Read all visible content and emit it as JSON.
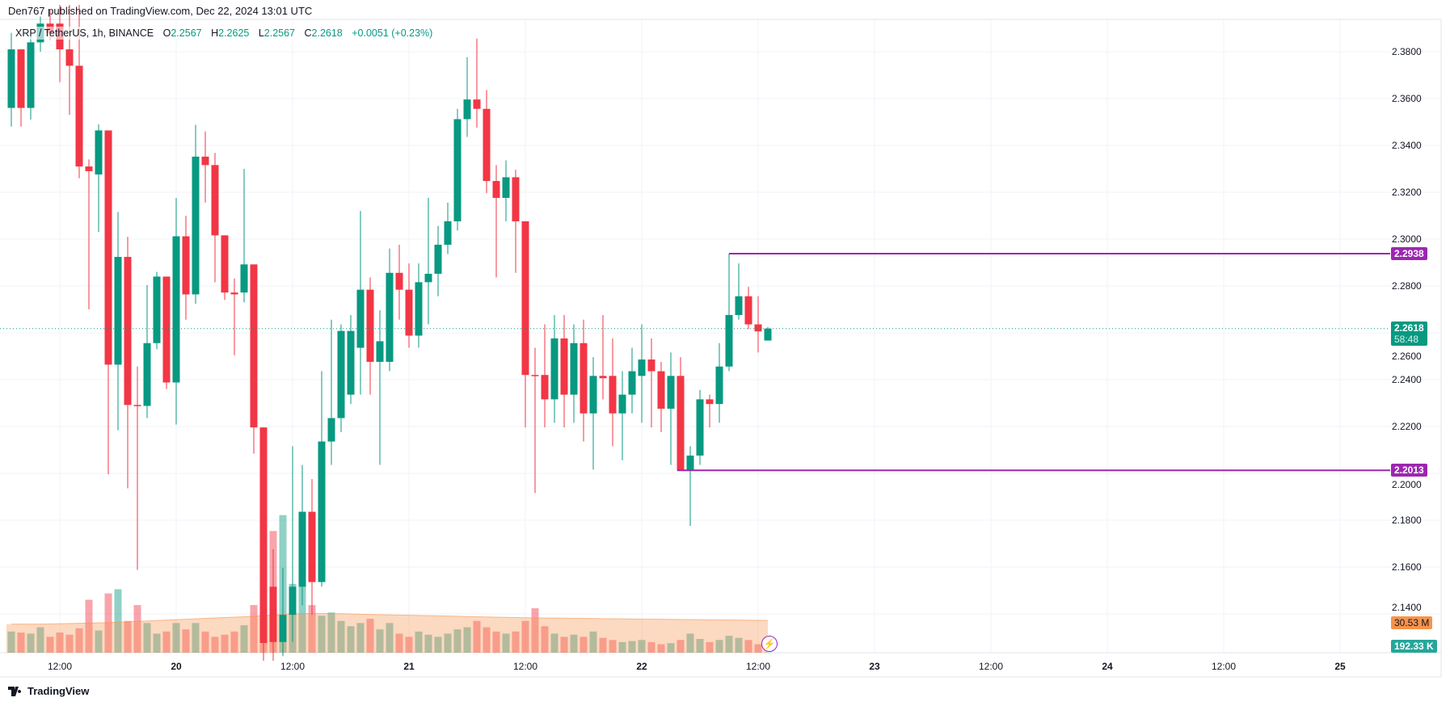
{
  "publisher_line": "Den767 published on TradingView.com, Dec 22, 2024 13:01 UTC",
  "legend": {
    "symbol": "XRP / TetherUS, 1h, BINANCE",
    "open_label": "O",
    "open": "2.2567",
    "high_label": "H",
    "high": "2.2625",
    "low_label": "L",
    "low": "2.2567",
    "close_label": "C",
    "close": "2.2618",
    "change": "+0.0051 (+0.23%)"
  },
  "price_axis": [
    "2.3800",
    "2.3600",
    "2.3400",
    "2.3200",
    "2.3000",
    "2.2800",
    "2.2600",
    "2.2400",
    "2.2200",
    "2.2000",
    "2.1800",
    "2.1600",
    "2.1400"
  ],
  "price_tags": {
    "resistance": "2.2938",
    "support": "2.2013",
    "last_price": "2.2618",
    "countdown": "58:48",
    "volume_ma": "30.53 M",
    "volume": "192.33 K"
  },
  "time_axis": [
    "12:00",
    "20",
    "12:00",
    "21",
    "12:00",
    "22",
    "12:00",
    "23",
    "12:00",
    "24",
    "12:00",
    "25"
  ],
  "colors": {
    "up": "#089981",
    "down": "#f23645",
    "level": "#9c27b0",
    "volume_ma": "#f7934c"
  },
  "icons": {
    "alert": "lightning-icon",
    "logo": "tradingview-logo-icon"
  },
  "brand": "TradingView",
  "chart_data": {
    "type": "candlestick",
    "interval": "1h",
    "first_bar": "Dec 19 07:00",
    "ylim": [
      2.12,
      2.4
    ],
    "levels": [
      2.2938,
      2.2013
    ],
    "ohlc": [
      [
        2.356,
        2.388,
        2.348,
        2.381
      ],
      [
        2.381,
        2.381,
        2.348,
        2.356
      ],
      [
        2.356,
        2.388,
        2.351,
        2.384
      ],
      [
        2.384,
        2.395,
        2.38,
        2.392
      ],
      [
        2.392,
        2.398,
        2.385,
        2.388
      ],
      [
        2.392,
        2.4,
        2.367,
        2.381
      ],
      [
        2.381,
        2.4,
        2.353,
        2.374
      ],
      [
        2.374,
        2.4,
        2.326,
        2.331
      ],
      [
        2.331,
        2.334,
        2.27,
        2.329
      ],
      [
        2.3276,
        2.349,
        2.303,
        2.3464
      ],
      [
        2.3464,
        2.3464,
        2.1996,
        2.2464
      ],
      [
        2.2464,
        2.3116,
        2.2184,
        2.2924
      ],
      [
        2.2924,
        2.301,
        2.1936,
        2.2292
      ],
      [
        2.2292,
        2.2456,
        2.1588,
        2.2288
      ],
      [
        2.2288,
        2.2804,
        2.2236,
        2.2556
      ],
      [
        2.2556,
        2.286,
        2.253,
        2.284
      ],
      [
        2.284,
        2.284,
        2.236,
        2.2388
      ],
      [
        2.2388,
        2.3176,
        2.2208,
        2.3012
      ],
      [
        2.3012,
        2.31,
        2.2656,
        2.2764
      ],
      [
        2.2764,
        2.3488,
        2.2724,
        2.3352
      ],
      [
        2.3352,
        2.346,
        2.3156,
        2.3316
      ],
      [
        2.3316,
        2.3368,
        2.2816,
        2.3016
      ],
      [
        2.3016,
        2.3016,
        2.274,
        2.2772
      ],
      [
        2.2772,
        2.2832,
        2.2504,
        2.2764
      ],
      [
        2.2772,
        2.33,
        2.273,
        2.2892
      ],
      [
        2.2892,
        2.2892,
        2.2084,
        2.2196
      ],
      [
        2.2196,
        2.2196,
        2.12,
        2.1276
      ],
      [
        2.1516,
        2.1676,
        2.12,
        2.128
      ],
      [
        2.128,
        2.1596,
        2.122,
        2.1396
      ],
      [
        2.1396,
        2.2116,
        2.128,
        2.1516
      ],
      [
        2.1516,
        2.2036,
        2.1436,
        2.1836
      ],
      [
        2.1836,
        2.1976,
        2.1396,
        2.1536
      ],
      [
        2.1536,
        2.2436,
        2.1516,
        2.2136
      ],
      [
        2.2136,
        2.2656,
        2.2036,
        2.2236
      ],
      [
        2.2236,
        2.2636,
        2.2176,
        2.2608
      ],
      [
        2.2336,
        2.2676,
        2.2296,
        2.2608
      ],
      [
        2.2536,
        2.312,
        2.2336,
        2.2784
      ],
      [
        2.2784,
        2.2836,
        2.2336,
        2.2476
      ],
      [
        2.2476,
        2.2696,
        2.2036,
        2.2564
      ],
      [
        2.2476,
        2.296,
        2.2436,
        2.2856
      ],
      [
        2.2856,
        2.2976,
        2.2656,
        2.2784
      ],
      [
        2.2784,
        2.2896,
        2.2536,
        2.2588
      ],
      [
        2.2588,
        2.2896,
        2.2536,
        2.2816
      ],
      [
        2.2816,
        2.3176,
        2.2636,
        2.2852
      ],
      [
        2.2852,
        2.3056,
        2.2756,
        2.2976
      ],
      [
        2.2976,
        2.3156,
        2.2936,
        2.3076
      ],
      [
        2.3076,
        2.3556,
        2.3036,
        2.3512
      ],
      [
        2.3512,
        2.3776,
        2.3436,
        2.3596
      ],
      [
        2.3596,
        2.3856,
        2.3476,
        2.3556
      ],
      [
        2.3556,
        2.3636,
        2.3196,
        2.3248
      ],
      [
        2.3248,
        2.3316,
        2.2836,
        2.3176
      ],
      [
        2.3176,
        2.3336,
        2.3076,
        2.3264
      ],
      [
        2.3264,
        2.3296,
        2.2856,
        2.3076
      ],
      [
        2.3076,
        2.3076,
        2.2196,
        2.242
      ],
      [
        2.242,
        2.2536,
        2.1916,
        2.2416
      ],
      [
        2.242,
        2.2636,
        2.2196,
        2.2316
      ],
      [
        2.2316,
        2.2676,
        2.2216,
        2.2576
      ],
      [
        2.2576,
        2.2676,
        2.2196,
        2.2336
      ],
      [
        2.2336,
        2.2636,
        2.2216,
        2.2556
      ],
      [
        2.2556,
        2.2656,
        2.2136,
        2.2256
      ],
      [
        2.2256,
        2.2496,
        2.2016,
        2.2416
      ],
      [
        2.2416,
        2.2676,
        2.2316,
        2.2406
      ],
      [
        2.2416,
        2.2576,
        2.2116,
        2.2256
      ],
      [
        2.2256,
        2.2436,
        2.2056,
        2.2336
      ],
      [
        2.2336,
        2.2536,
        2.2256,
        2.2436
      ],
      [
        2.2416,
        2.2636,
        2.2216,
        2.2486
      ],
      [
        2.2486,
        2.2576,
        2.2196,
        2.2436
      ],
      [
        2.2436,
        2.2476,
        2.2176,
        2.2276
      ],
      [
        2.2276,
        2.2516,
        2.2036,
        2.2416
      ],
      [
        2.2416,
        2.2496,
        2.2013,
        2.2013
      ],
      [
        2.2013,
        2.2116,
        2.1776,
        2.2076
      ],
      [
        2.2076,
        2.2356,
        2.2036,
        2.2316
      ],
      [
        2.2316,
        2.2336,
        2.2196,
        2.2296
      ],
      [
        2.2296,
        2.2556,
        2.2216,
        2.2456
      ],
      [
        2.2456,
        2.2938,
        2.2436,
        2.2676
      ],
      [
        2.2676,
        2.2896,
        2.2656,
        2.2756
      ],
      [
        2.2756,
        2.2796,
        2.2616,
        2.2636
      ],
      [
        2.2636,
        2.2756,
        2.2516,
        2.2606
      ],
      [
        2.2567,
        2.2625,
        2.2567,
        2.2618
      ]
    ],
    "volume_millions": [
      20,
      19,
      18,
      24,
      15,
      19,
      17,
      23,
      50,
      21,
      56,
      60,
      30,
      45,
      28,
      18,
      20,
      28,
      22,
      28,
      20,
      15,
      17,
      20,
      26,
      45,
      110,
      115,
      130,
      65,
      110,
      45,
      35,
      38,
      30,
      25,
      28,
      32,
      22,
      28,
      18,
      15,
      20,
      17,
      15,
      18,
      22,
      24,
      30,
      24,
      20,
      18,
      20,
      30,
      42,
      25,
      18,
      15,
      17,
      15,
      20,
      14,
      12,
      10,
      11,
      12,
      10,
      8,
      9,
      12,
      18,
      13,
      10,
      12,
      16,
      14,
      12,
      8,
      0.19
    ],
    "volume_ma_millions": [
      27,
      27,
      27,
      27,
      27.2,
      27.4,
      27.6,
      27.8,
      28,
      28.2,
      28.4,
      28.8,
      29.2,
      29.6,
      30,
      30.4,
      30.8,
      31.2,
      31.6,
      32,
      32.4,
      32.8,
      33.2,
      33.6,
      34,
      34.4,
      35,
      35.6,
      36.2,
      36.6,
      37,
      37,
      37,
      37,
      36.8,
      36.6,
      36.4,
      36.2,
      36,
      35.8,
      35.6,
      35.4,
      35.2,
      35,
      34.8,
      34.6,
      34.4,
      34.2,
      34,
      33.8,
      33.6,
      33.4,
      33.2,
      33,
      32.9,
      32.8,
      32.7,
      32.6,
      32.5,
      32.4,
      32.3,
      32.2,
      32.1,
      32,
      31.9,
      31.8,
      31.7,
      31.6,
      31.5,
      31.4,
      31.3,
      31.2,
      31.1,
      31,
      30.9,
      30.8,
      30.7,
      30.6,
      30.53
    ]
  }
}
